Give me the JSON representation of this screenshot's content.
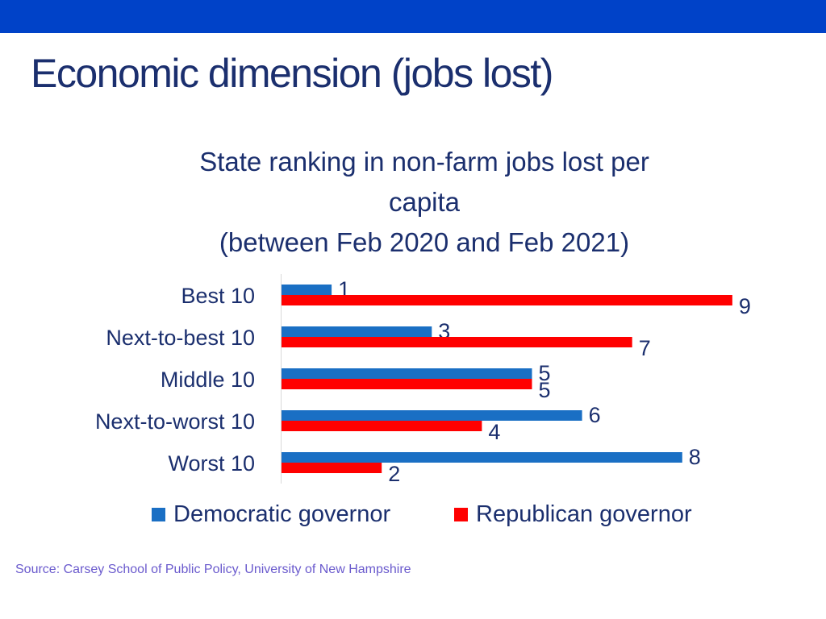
{
  "header_bar": {
    "color": "#0042C8"
  },
  "slide": {
    "title": "Economic dimension (jobs lost)",
    "title_color": "#1B2F6E",
    "source": "Source: Carsey School of Public Policy, University of New Hampshire",
    "source_color": "#6A5ACD"
  },
  "chart_data": {
    "type": "bar",
    "orientation": "horizontal",
    "title_lines": [
      "State ranking in non-farm jobs lost per",
      "capita",
      "(between Feb 2020 and Feb 2021)"
    ],
    "categories": [
      "Best 10",
      "Next-to-best 10",
      "Middle 10",
      "Next-to-worst 10",
      "Worst 10"
    ],
    "series": [
      {
        "name": "Democratic governor",
        "values": [
          1,
          3,
          5,
          6,
          8
        ],
        "color": "#1A6FC4"
      },
      {
        "name": "Republican governor",
        "values": [
          9,
          7,
          5,
          4,
          2
        ],
        "color": "#FF0000"
      }
    ],
    "xlim": [
      0,
      9
    ],
    "data_labels": true,
    "grid": false,
    "legend_position": "bottom",
    "text_color": "#1B2F6E"
  }
}
